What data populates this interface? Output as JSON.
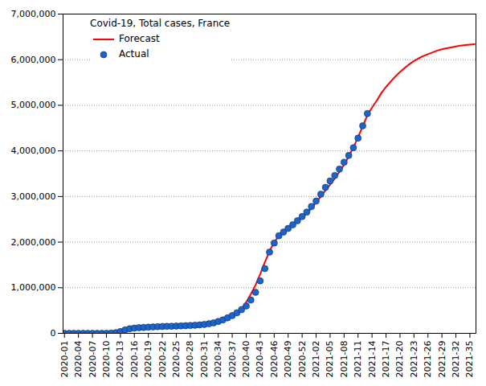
{
  "chart_data": {
    "type": "line",
    "title": "Covid-19, Total cases, France",
    "categories": [
      "2020-01",
      null,
      null,
      "2020-04",
      null,
      null,
      "2020-07",
      null,
      null,
      "2020-10",
      null,
      null,
      "2020-13",
      null,
      null,
      "2020-16",
      null,
      null,
      "2020-19",
      null,
      null,
      "2020-22",
      null,
      null,
      "2020-25",
      null,
      null,
      "2020-28",
      null,
      null,
      "2020-31",
      null,
      null,
      "2020-34",
      null,
      null,
      "2020-37",
      null,
      null,
      "2020-40",
      null,
      null,
      "2020-43",
      null,
      null,
      "2020-46",
      null,
      null,
      "2020-49",
      null,
      null,
      "2020-52",
      null,
      null,
      "2021-02",
      null,
      null,
      "2021-05",
      null,
      null,
      "2021-08",
      null,
      null,
      "2021-11",
      null,
      null,
      "2021-14",
      null,
      null,
      "2021-17",
      null,
      null,
      "2021-20",
      null,
      null,
      "2021-23",
      null,
      null,
      "2021-26",
      null,
      null,
      "2021-29",
      null,
      null,
      "2021-32",
      null,
      null,
      "2021-35",
      null
    ],
    "series": [
      {
        "name": "Forecast",
        "type": "line",
        "color": "#ff0000",
        "line_style": "solid",
        "values": [
          0,
          0,
          0,
          0,
          0,
          0,
          0,
          0,
          0,
          1000,
          4000,
          12000,
          35000,
          70000,
          95000,
          110000,
          120000,
          127000,
          133000,
          138000,
          143000,
          148000,
          152000,
          155000,
          158000,
          162000,
          166000,
          171000,
          177000,
          184000,
          194000,
          208000,
          228000,
          255000,
          290000,
          330000,
          380000,
          440000,
          540000,
          680000,
          860000,
          1060000,
          1300000,
          1560000,
          1800000,
          2000000,
          2130000,
          2220000,
          2300000,
          2370000,
          2450000,
          2540000,
          2630000,
          2740000,
          2870000,
          3000000,
          3130000,
          3260000,
          3390000,
          3540000,
          3700000,
          3880000,
          4080000,
          4300000,
          4540000,
          4780000,
          4950000,
          5100000,
          5270000,
          5400000,
          5520000,
          5630000,
          5730000,
          5820000,
          5900000,
          5970000,
          6030000,
          6080000,
          6120000,
          6160000,
          6200000,
          6230000,
          6250000,
          6270000,
          6290000,
          6310000,
          6320000,
          6330000,
          6340000
        ]
      },
      {
        "name": "Actual",
        "type": "scatter",
        "color": "#1e64c8",
        "marker": "circle",
        "values": [
          0,
          0,
          0,
          0,
          0,
          0,
          0,
          0,
          100,
          1400,
          5000,
          15000,
          40000,
          75000,
          100000,
          115000,
          125000,
          130000,
          135000,
          140000,
          145000,
          150000,
          153000,
          156000,
          160000,
          163000,
          167000,
          172000,
          178000,
          185000,
          195000,
          210000,
          230000,
          260000,
          295000,
          340000,
          390000,
          450000,
          520000,
          600000,
          730000,
          900000,
          1150000,
          1420000,
          1780000,
          1980000,
          2140000,
          2220000,
          2300000,
          2380000,
          2470000,
          2560000,
          2660000,
          2780000,
          2900000,
          3050000,
          3200000,
          3340000,
          3460000,
          3600000,
          3750000,
          3900000,
          4070000,
          4280000,
          4550000,
          4820000,
          null,
          null,
          null,
          null,
          null,
          null,
          null,
          null,
          null,
          null,
          null,
          null,
          null,
          null,
          null,
          null,
          null,
          null,
          null,
          null,
          null,
          null,
          null
        ]
      }
    ],
    "ylim": [
      0,
      7000000
    ],
    "yticks": [
      0,
      {
        "value": 1000000,
        "label": "1,000,000"
      },
      {
        "value": 2000000,
        "label": "2,000,000"
      },
      {
        "value": 3000000,
        "label": "3,000,000"
      },
      {
        "value": 4000000,
        "label": "4,000,000"
      },
      {
        "value": 5000000,
        "label": "5,000,000"
      },
      {
        "value": 6000000,
        "label": "6,000,000"
      },
      {
        "value": 7000000,
        "label": "7,000,000"
      }
    ],
    "grid": true,
    "legend": "top-left"
  }
}
